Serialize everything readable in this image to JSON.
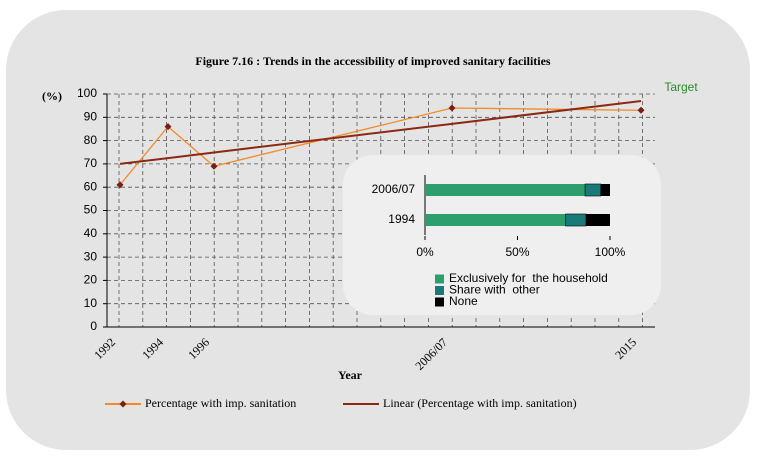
{
  "chart_data": [
    {
      "type": "line",
      "title": "Figure 7.16 : Trends in the accessibility of improved sanitary facilities",
      "y_axis_label": "(%)",
      "x_axis_label": "Year",
      "annotation": "Target",
      "categories": [
        "1992",
        "1994",
        "1996",
        "2006/07",
        "2015"
      ],
      "series": [
        {
          "name": "Percentage with imp. sanitation",
          "color": "#f08c28",
          "marker_color": "#7a1e12",
          "values": [
            61,
            86,
            69,
            94,
            93
          ]
        },
        {
          "name": "Linear (Percentage with imp. sanitation)",
          "color": "#8b2a12",
          "values": [
            70,
            72.5,
            74.9,
            87.2,
            97
          ]
        }
      ],
      "ylim": [
        0,
        100
      ],
      "yticks": [
        0,
        10,
        20,
        30,
        40,
        50,
        60,
        70,
        80,
        90,
        100
      ],
      "grid": true
    },
    {
      "type": "bar",
      "orientation": "horizontal",
      "stacked": true,
      "categories": [
        "2006/07",
        "1994"
      ],
      "series": [
        {
          "name": "Exclusively for  the household",
          "color": "#2e9e6e",
          "values": [
            86.5,
            76
          ]
        },
        {
          "name": "Share with  other",
          "color": "#1a7a7a",
          "values": [
            8.5,
            11
          ]
        },
        {
          "name": "None",
          "color": "#000000",
          "values": [
            5,
            13
          ]
        }
      ],
      "xlim": [
        0,
        100
      ],
      "xticks": [
        {
          "value": 0,
          "label": "0%"
        },
        {
          "value": 50,
          "label": "50%"
        },
        {
          "value": 100,
          "label": "100%"
        }
      ]
    }
  ]
}
